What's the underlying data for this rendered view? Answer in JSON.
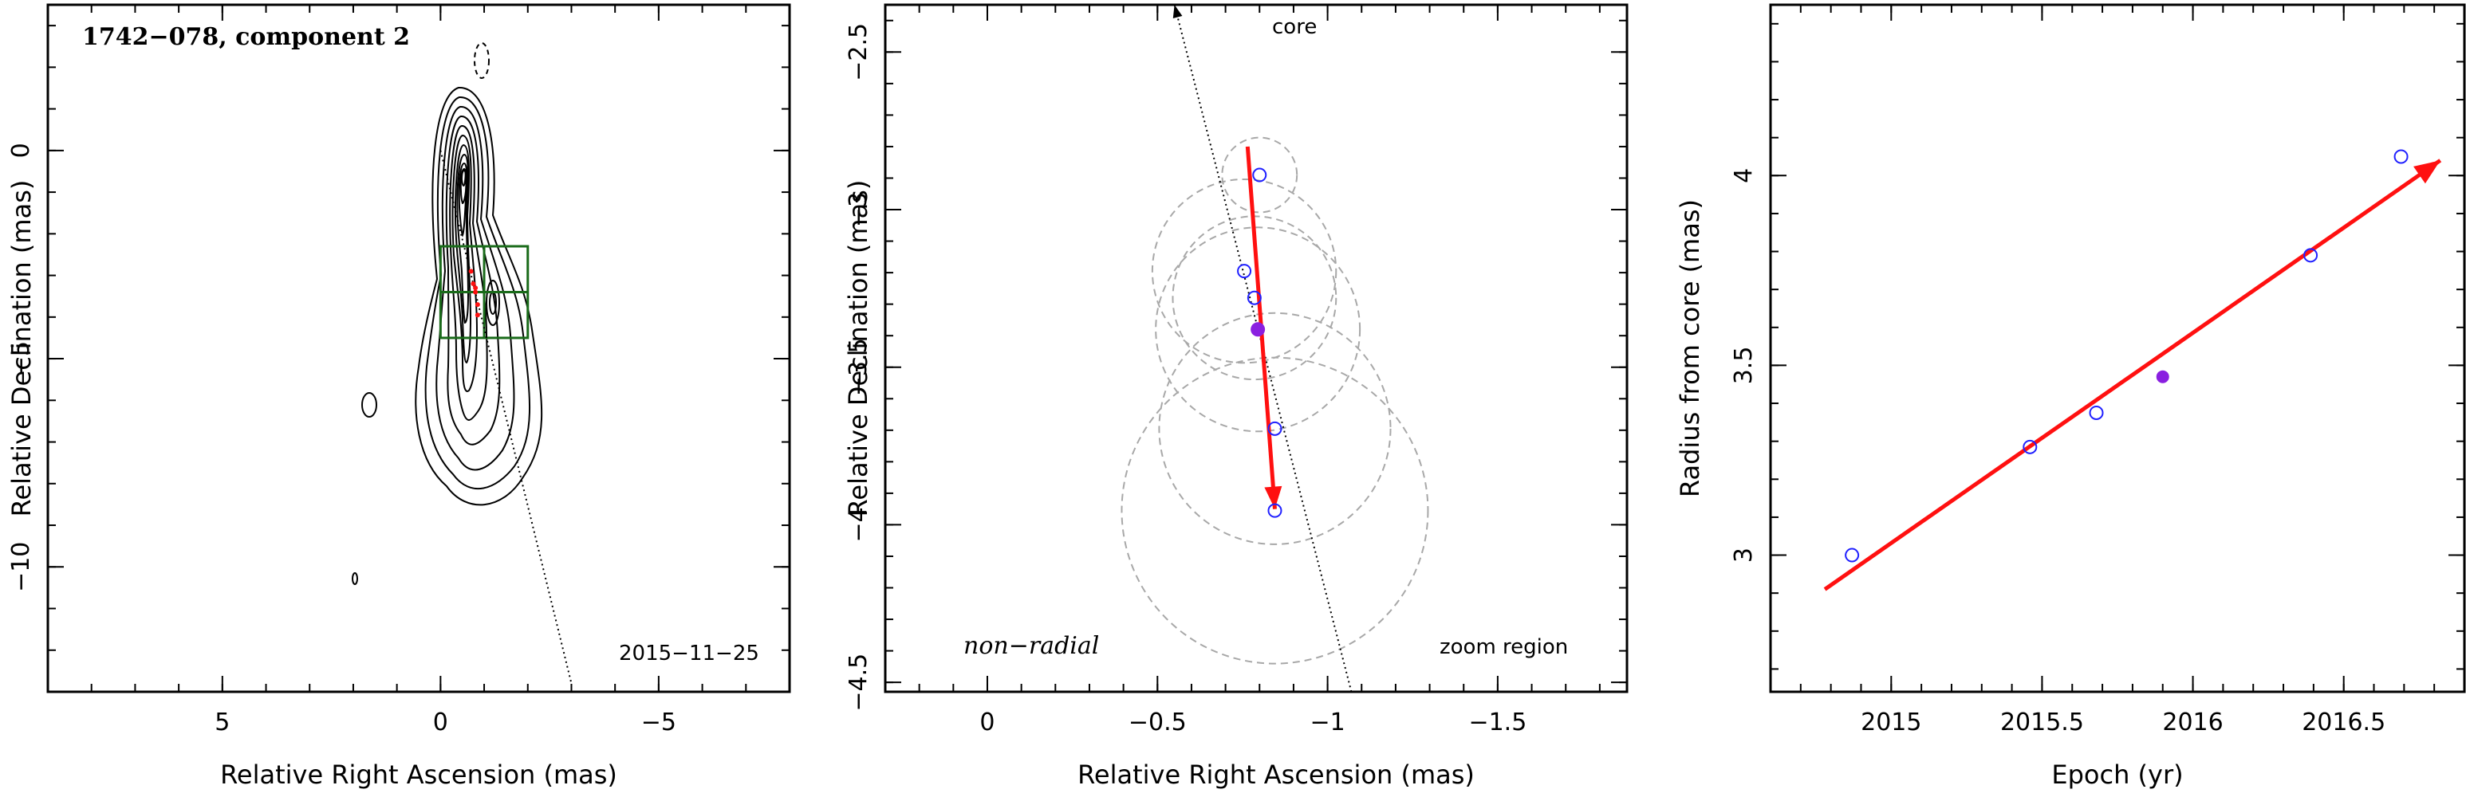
{
  "chart_data": [
    {
      "type": "contour",
      "title": "1742−078, component 2",
      "date_label": "2015−11−25",
      "xlabel": "Relative Right Ascension (mas)",
      "ylabel": "Relative Declination (mas)",
      "xlim": [
        9,
        -8
      ],
      "ylim": [
        -13,
        3.5
      ],
      "x_ticks": [
        5,
        0,
        -5
      ],
      "y_ticks": [
        0,
        -5,
        -10
      ],
      "x_tick_labels": [
        "5",
        "0",
        "−5"
      ],
      "y_tick_labels": [
        "0",
        "−5",
        "−10"
      ],
      "zoom_box": {
        "x": [
          0,
          -2
        ],
        "y": [
          -2.3,
          -4.5
        ]
      },
      "core_direction_line": {
        "from": [
          0,
          0
        ],
        "to": [
          -3,
          -12.8
        ]
      },
      "components": [
        {
          "x": -0.7,
          "y": -2.9
        },
        {
          "x": -0.75,
          "y": -3.2
        },
        {
          "x": -0.8,
          "y": -3.3
        },
        {
          "x": -0.8,
          "y": -3.4
        },
        {
          "x": -0.85,
          "y": -3.7
        },
        {
          "x": -0.85,
          "y": -3.95
        }
      ]
    },
    {
      "type": "scatter",
      "xlabel": "Relative Right Ascension (mas)",
      "ylabel": "Relative Declination (mas)",
      "xlim": [
        0.3,
        -1.88
      ],
      "ylim": [
        -4.53,
        -2.35
      ],
      "x_ticks": [
        0,
        -0.5,
        -1,
        -1.5
      ],
      "y_ticks": [
        -2.5,
        -3,
        -3.5,
        -4,
        -4.5
      ],
      "x_tick_labels": [
        "0",
        "−0.5",
        "−1",
        "−1.5"
      ],
      "y_tick_labels": [
        "−2.5",
        "−3",
        "−3.5",
        "−4",
        "−4.5"
      ],
      "annotations": {
        "core": "core",
        "mode": "non−radial",
        "region": "zoom region"
      },
      "points_open": [
        {
          "x": -0.8,
          "y": -2.89
        },
        {
          "x": -0.755,
          "y": -3.195
        },
        {
          "x": -0.785,
          "y": -3.28
        },
        {
          "x": -0.845,
          "y": -3.695
        },
        {
          "x": -0.845,
          "y": -3.955
        }
      ],
      "point_filled": {
        "x": -0.795,
        "y": -3.38
      },
      "circles": [
        {
          "x": -0.8,
          "y": -2.89,
          "r": 0.11
        },
        {
          "x": -0.755,
          "y": -3.195,
          "r": 0.27
        },
        {
          "x": -0.785,
          "y": -3.28,
          "r": 0.24
        },
        {
          "x": -0.795,
          "y": -3.38,
          "r": 0.3
        },
        {
          "x": -0.845,
          "y": -3.695,
          "r": 0.34
        },
        {
          "x": -0.845,
          "y": -3.955,
          "r": 0.45
        }
      ],
      "vector": {
        "from": [
          -0.765,
          -2.8
        ],
        "to": [
          -0.845,
          -3.95
        ]
      },
      "core_line": {
        "from": [
          -1.07,
          -4.53
        ],
        "to": [
          -0.55,
          -2.35
        ]
      }
    },
    {
      "type": "scatter",
      "xlabel": "Epoch (yr)",
      "ylabel": "Radius from core (mas)",
      "xlim": [
        2014.6,
        2016.9
      ],
      "ylim": [
        2.64,
        4.45
      ],
      "x_ticks": [
        2015,
        2015.5,
        2016,
        2016.5
      ],
      "y_ticks": [
        3,
        3.5,
        4
      ],
      "x_tick_labels": [
        "2015",
        "2015.5",
        "2016",
        "2016.5"
      ],
      "y_tick_labels": [
        "3",
        "3.5",
        "4"
      ],
      "x": [
        2014.87,
        2015.46,
        2015.68,
        2016.39,
        2016.69
      ],
      "y": [
        3.0,
        3.285,
        3.375,
        3.79,
        4.05
      ],
      "point_filled": {
        "x": 2015.9,
        "y": 3.47
      },
      "fit": {
        "from": [
          2014.78,
          2.91
        ],
        "to": [
          2016.82,
          4.04
        ]
      }
    }
  ],
  "colors": {
    "open_marker": "#2020ff",
    "filled_marker": "#8a1fe0",
    "vector": "#ff1010",
    "zoom_box": "#1a6b1a",
    "dashed_circle": "#a8a8a8"
  }
}
